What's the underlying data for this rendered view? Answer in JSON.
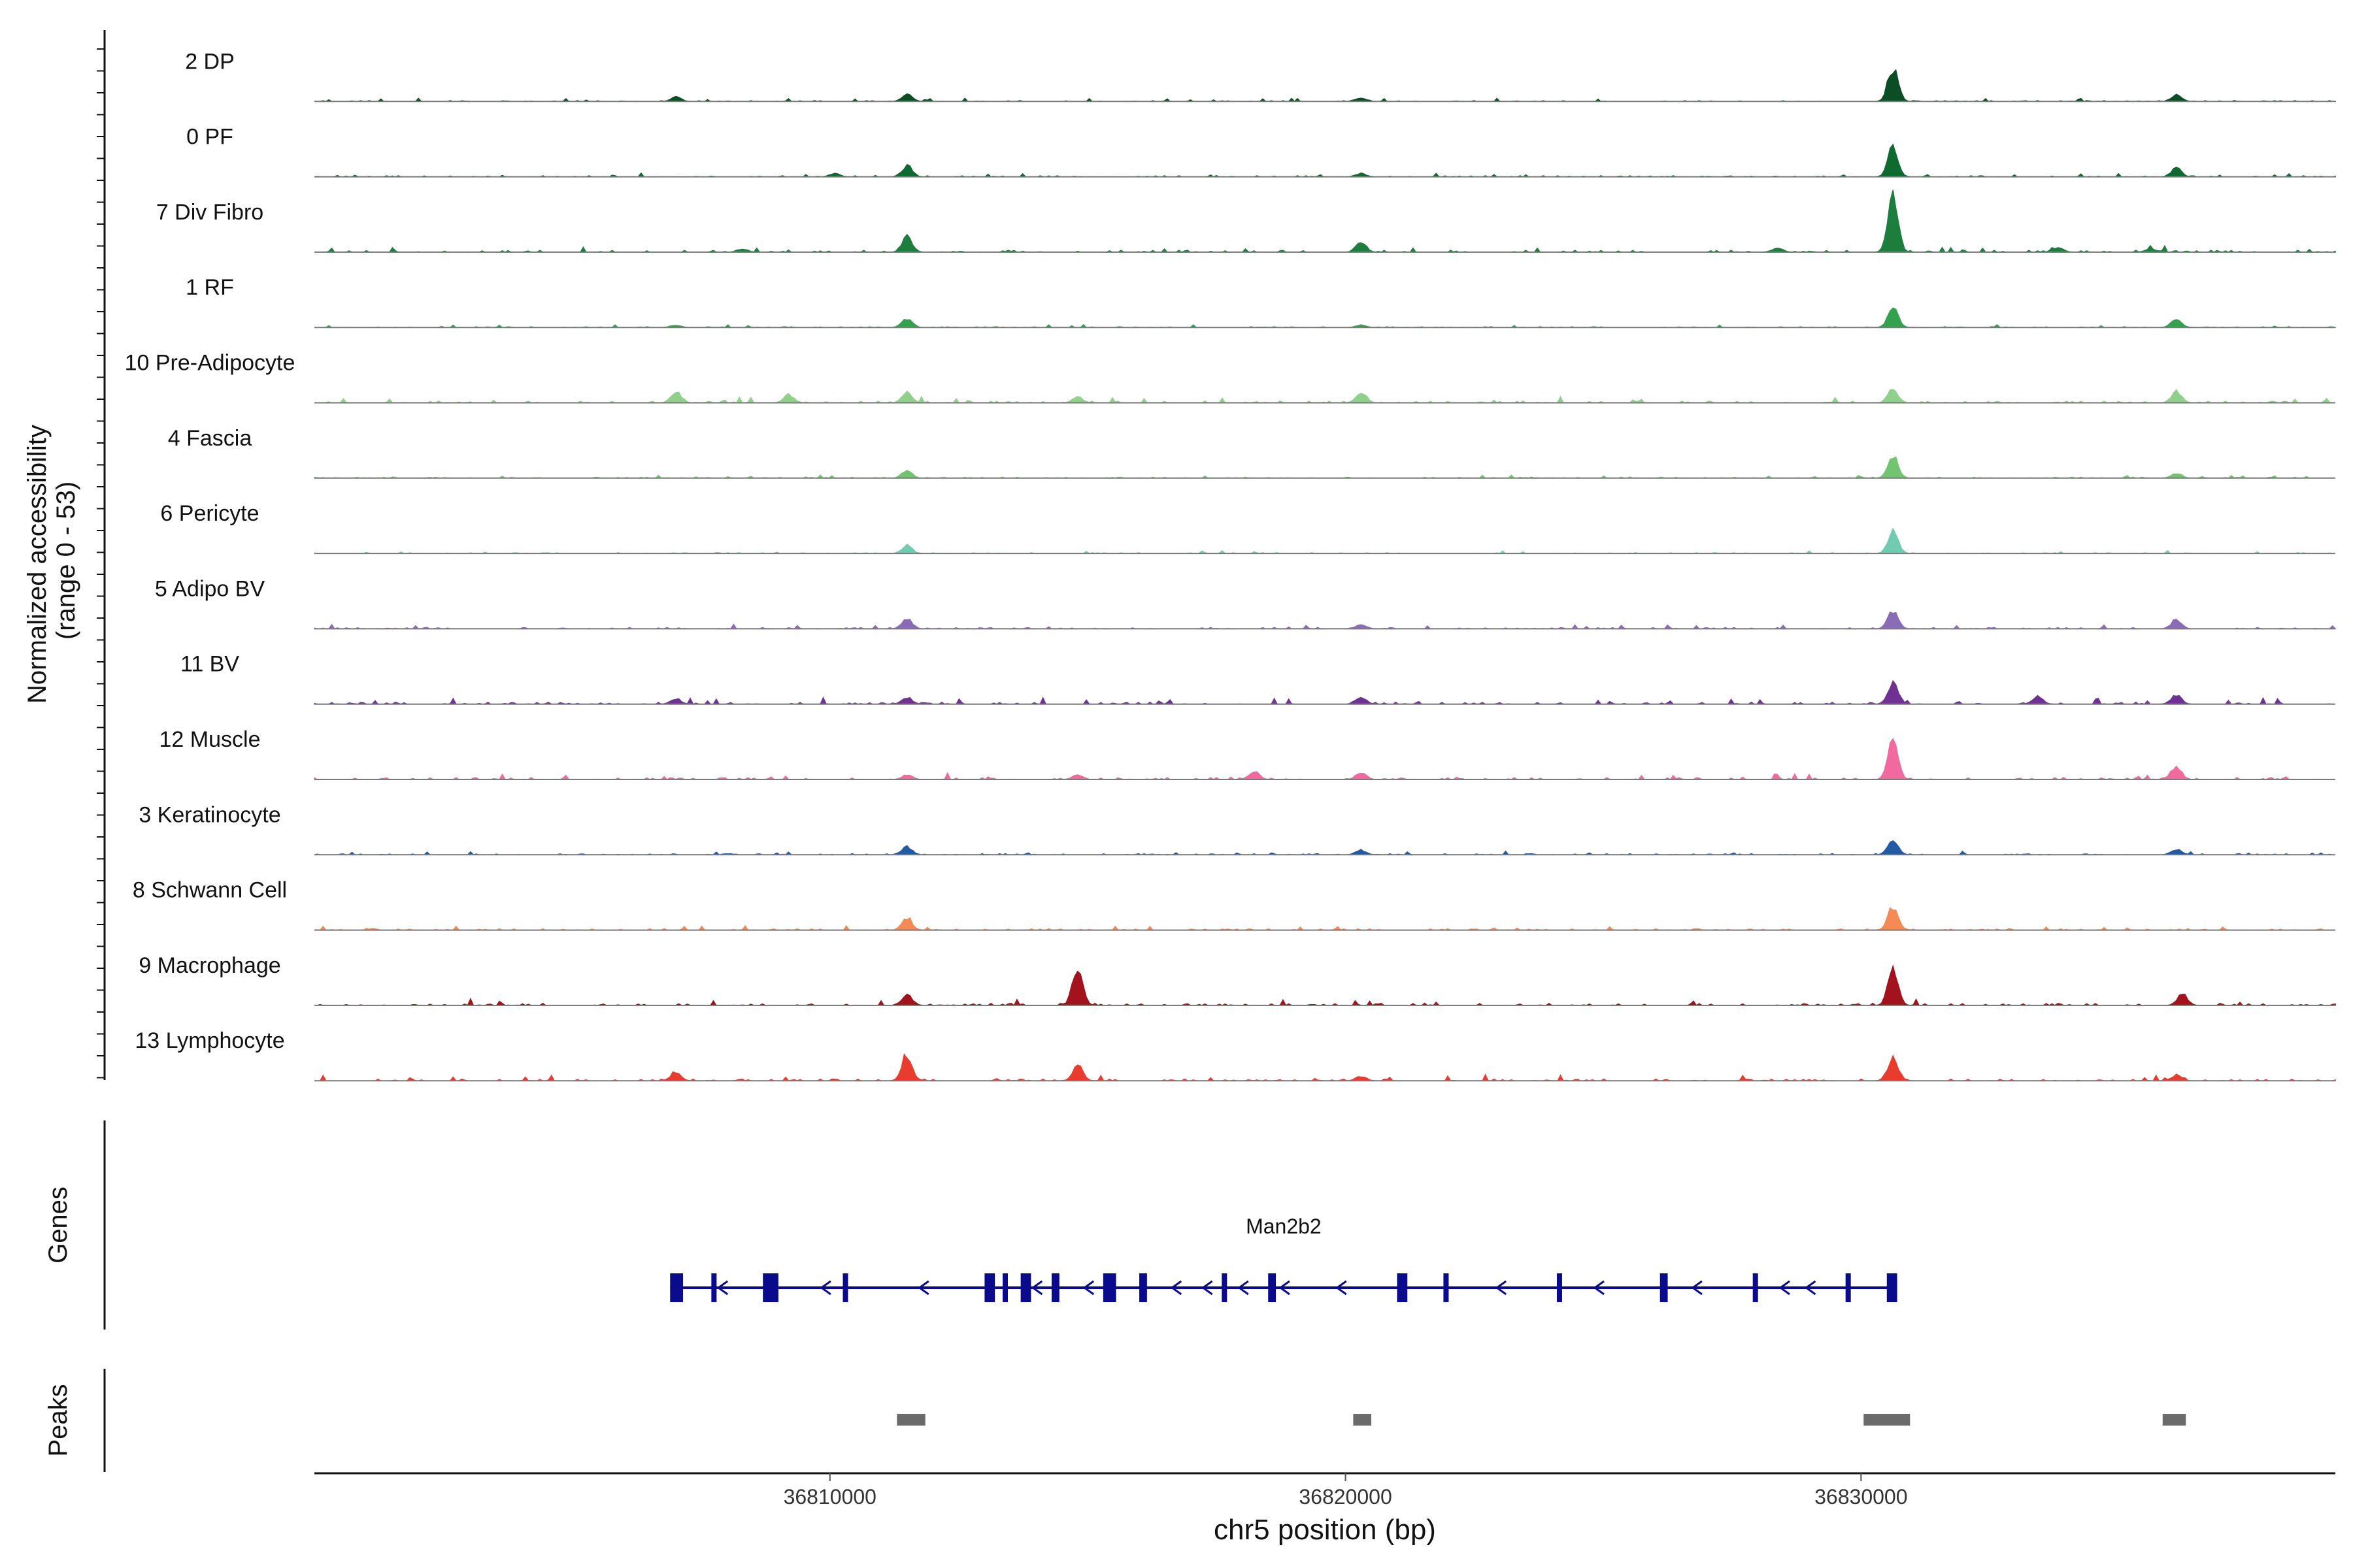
{
  "chart_data": {
    "type": "area",
    "title": "",
    "ylabel_line1": "Normalized accessibility",
    "ylabel_line2": "(range 0 - 53)",
    "yrange": [
      0,
      53
    ],
    "xlabel": "chr5 position (bp)",
    "xlim": [
      36800000,
      36839200
    ],
    "xticks": [
      36810000,
      36820000,
      36830000
    ],
    "xtick_labels": [
      "36810000",
      "36820000",
      "36830000"
    ],
    "tracks": [
      {
        "name": "2 DP",
        "color": "#0b4d24",
        "noise": 0.7,
        "peaks": [
          [
            36807000,
            4
          ],
          [
            36811500,
            6
          ],
          [
            36820300,
            3
          ],
          [
            36830600,
            30
          ],
          [
            36836100,
            6
          ]
        ]
      },
      {
        "name": "0 PF",
        "color": "#0e6b30",
        "noise": 0.8,
        "peaks": [
          [
            36810100,
            3
          ],
          [
            36811500,
            10
          ],
          [
            36820300,
            3
          ],
          [
            36830600,
            26
          ],
          [
            36836100,
            8
          ]
        ]
      },
      {
        "name": "7 Div Fibro",
        "color": "#1c7d3c",
        "noise": 1.4,
        "peaks": [
          [
            36808300,
            3
          ],
          [
            36811500,
            14
          ],
          [
            36820300,
            9
          ],
          [
            36828400,
            4
          ],
          [
            36830600,
            48
          ],
          [
            36833800,
            4
          ],
          [
            36835600,
            3
          ]
        ]
      },
      {
        "name": "1 RF",
        "color": "#34a14f",
        "noise": 0.6,
        "peaks": [
          [
            36807000,
            2
          ],
          [
            36811500,
            8
          ],
          [
            36820300,
            2
          ],
          [
            36830600,
            18
          ],
          [
            36836100,
            7
          ]
        ]
      },
      {
        "name": "10 Pre-Adipocyte",
        "color": "#8fd18b",
        "noise": 1.3,
        "peaks": [
          [
            36807000,
            10
          ],
          [
            36809200,
            7
          ],
          [
            36811500,
            9
          ],
          [
            36814800,
            5
          ],
          [
            36820300,
            10
          ],
          [
            36830600,
            12
          ],
          [
            36836100,
            10
          ]
        ]
      },
      {
        "name": "4 Fascia",
        "color": "#72c46f",
        "noise": 0.7,
        "peaks": [
          [
            36811500,
            7
          ],
          [
            36830600,
            20
          ],
          [
            36836100,
            4
          ]
        ]
      },
      {
        "name": "6 Pericyte",
        "color": "#72cbb1",
        "noise": 0.6,
        "peaks": [
          [
            36811500,
            7
          ],
          [
            36830600,
            20
          ]
        ]
      },
      {
        "name": "5 Adipo BV",
        "color": "#8a6bb5",
        "noise": 1.0,
        "peaks": [
          [
            36811500,
            9
          ],
          [
            36820300,
            4
          ],
          [
            36830600,
            16
          ],
          [
            36836100,
            8
          ]
        ]
      },
      {
        "name": "11 BV",
        "color": "#6f3294",
        "noise": 1.4,
        "peaks": [
          [
            36807000,
            5
          ],
          [
            36811500,
            6
          ],
          [
            36820300,
            6
          ],
          [
            36830600,
            20
          ],
          [
            36833400,
            7
          ],
          [
            36836100,
            8
          ]
        ]
      },
      {
        "name": "12 Muscle",
        "color": "#f06a9f",
        "noise": 1.4,
        "peaks": [
          [
            36811500,
            4
          ],
          [
            36814800,
            4
          ],
          [
            36818200,
            7
          ],
          [
            36820300,
            6
          ],
          [
            36830600,
            34
          ],
          [
            36836100,
            12
          ]
        ]
      },
      {
        "name": "3 Keratinocyte",
        "color": "#1f5ba6",
        "noise": 0.8,
        "peaks": [
          [
            36811500,
            7
          ],
          [
            36820300,
            4
          ],
          [
            36830600,
            14
          ],
          [
            36836100,
            5
          ]
        ]
      },
      {
        "name": "8 Schwann Cell",
        "color": "#f58a55",
        "noise": 1.0,
        "peaks": [
          [
            36811500,
            11
          ],
          [
            36830600,
            20
          ]
        ]
      },
      {
        "name": "9 Macrophage",
        "color": "#a3131d",
        "noise": 1.6,
        "peaks": [
          [
            36811500,
            10
          ],
          [
            36814800,
            34
          ],
          [
            36830600,
            30
          ],
          [
            36836200,
            10
          ]
        ]
      },
      {
        "name": "13 Lymphocyte",
        "color": "#e83c2f",
        "noise": 1.3,
        "peaks": [
          [
            36807000,
            8
          ],
          [
            36811500,
            24
          ],
          [
            36814800,
            14
          ],
          [
            36820300,
            4
          ],
          [
            36830600,
            22
          ],
          [
            36836100,
            5
          ]
        ]
      }
    ],
    "genes": {
      "label": "Genes",
      "gene_name": "Man2b2",
      "color": "#0a0a8c",
      "start": 36806900,
      "end": 36830700,
      "strand": "-",
      "exons": [
        [
          36806900,
          36807150
        ],
        [
          36807700,
          36807800
        ],
        [
          36808700,
          36809000
        ],
        [
          36810250,
          36810350
        ],
        [
          36813000,
          36813200
        ],
        [
          36813350,
          36813450
        ],
        [
          36813700,
          36813900
        ],
        [
          36814300,
          36814450
        ],
        [
          36815300,
          36815550
        ],
        [
          36816000,
          36816150
        ],
        [
          36817600,
          36817700
        ],
        [
          36818500,
          36818650
        ],
        [
          36821000,
          36821200
        ],
        [
          36821900,
          36822000
        ],
        [
          36824100,
          36824200
        ],
        [
          36826100,
          36826250
        ],
        [
          36827900,
          36828000
        ],
        [
          36829700,
          36829800
        ],
        [
          36830500,
          36830700
        ]
      ],
      "arrows": [
        36807900,
        36809900,
        36811800,
        36814000,
        36815000,
        36816700,
        36817300,
        36818000,
        36818800,
        36819900,
        36823000,
        36824900,
        36826800,
        36828500,
        36829000
      ]
    },
    "peaks": {
      "label": "Peaks",
      "color": "#6b6b6b",
      "regions": [
        [
          36811300,
          36811850
        ],
        [
          36820150,
          36820500
        ],
        [
          36830050,
          36830950
        ],
        [
          36835850,
          36836300
        ]
      ]
    }
  }
}
